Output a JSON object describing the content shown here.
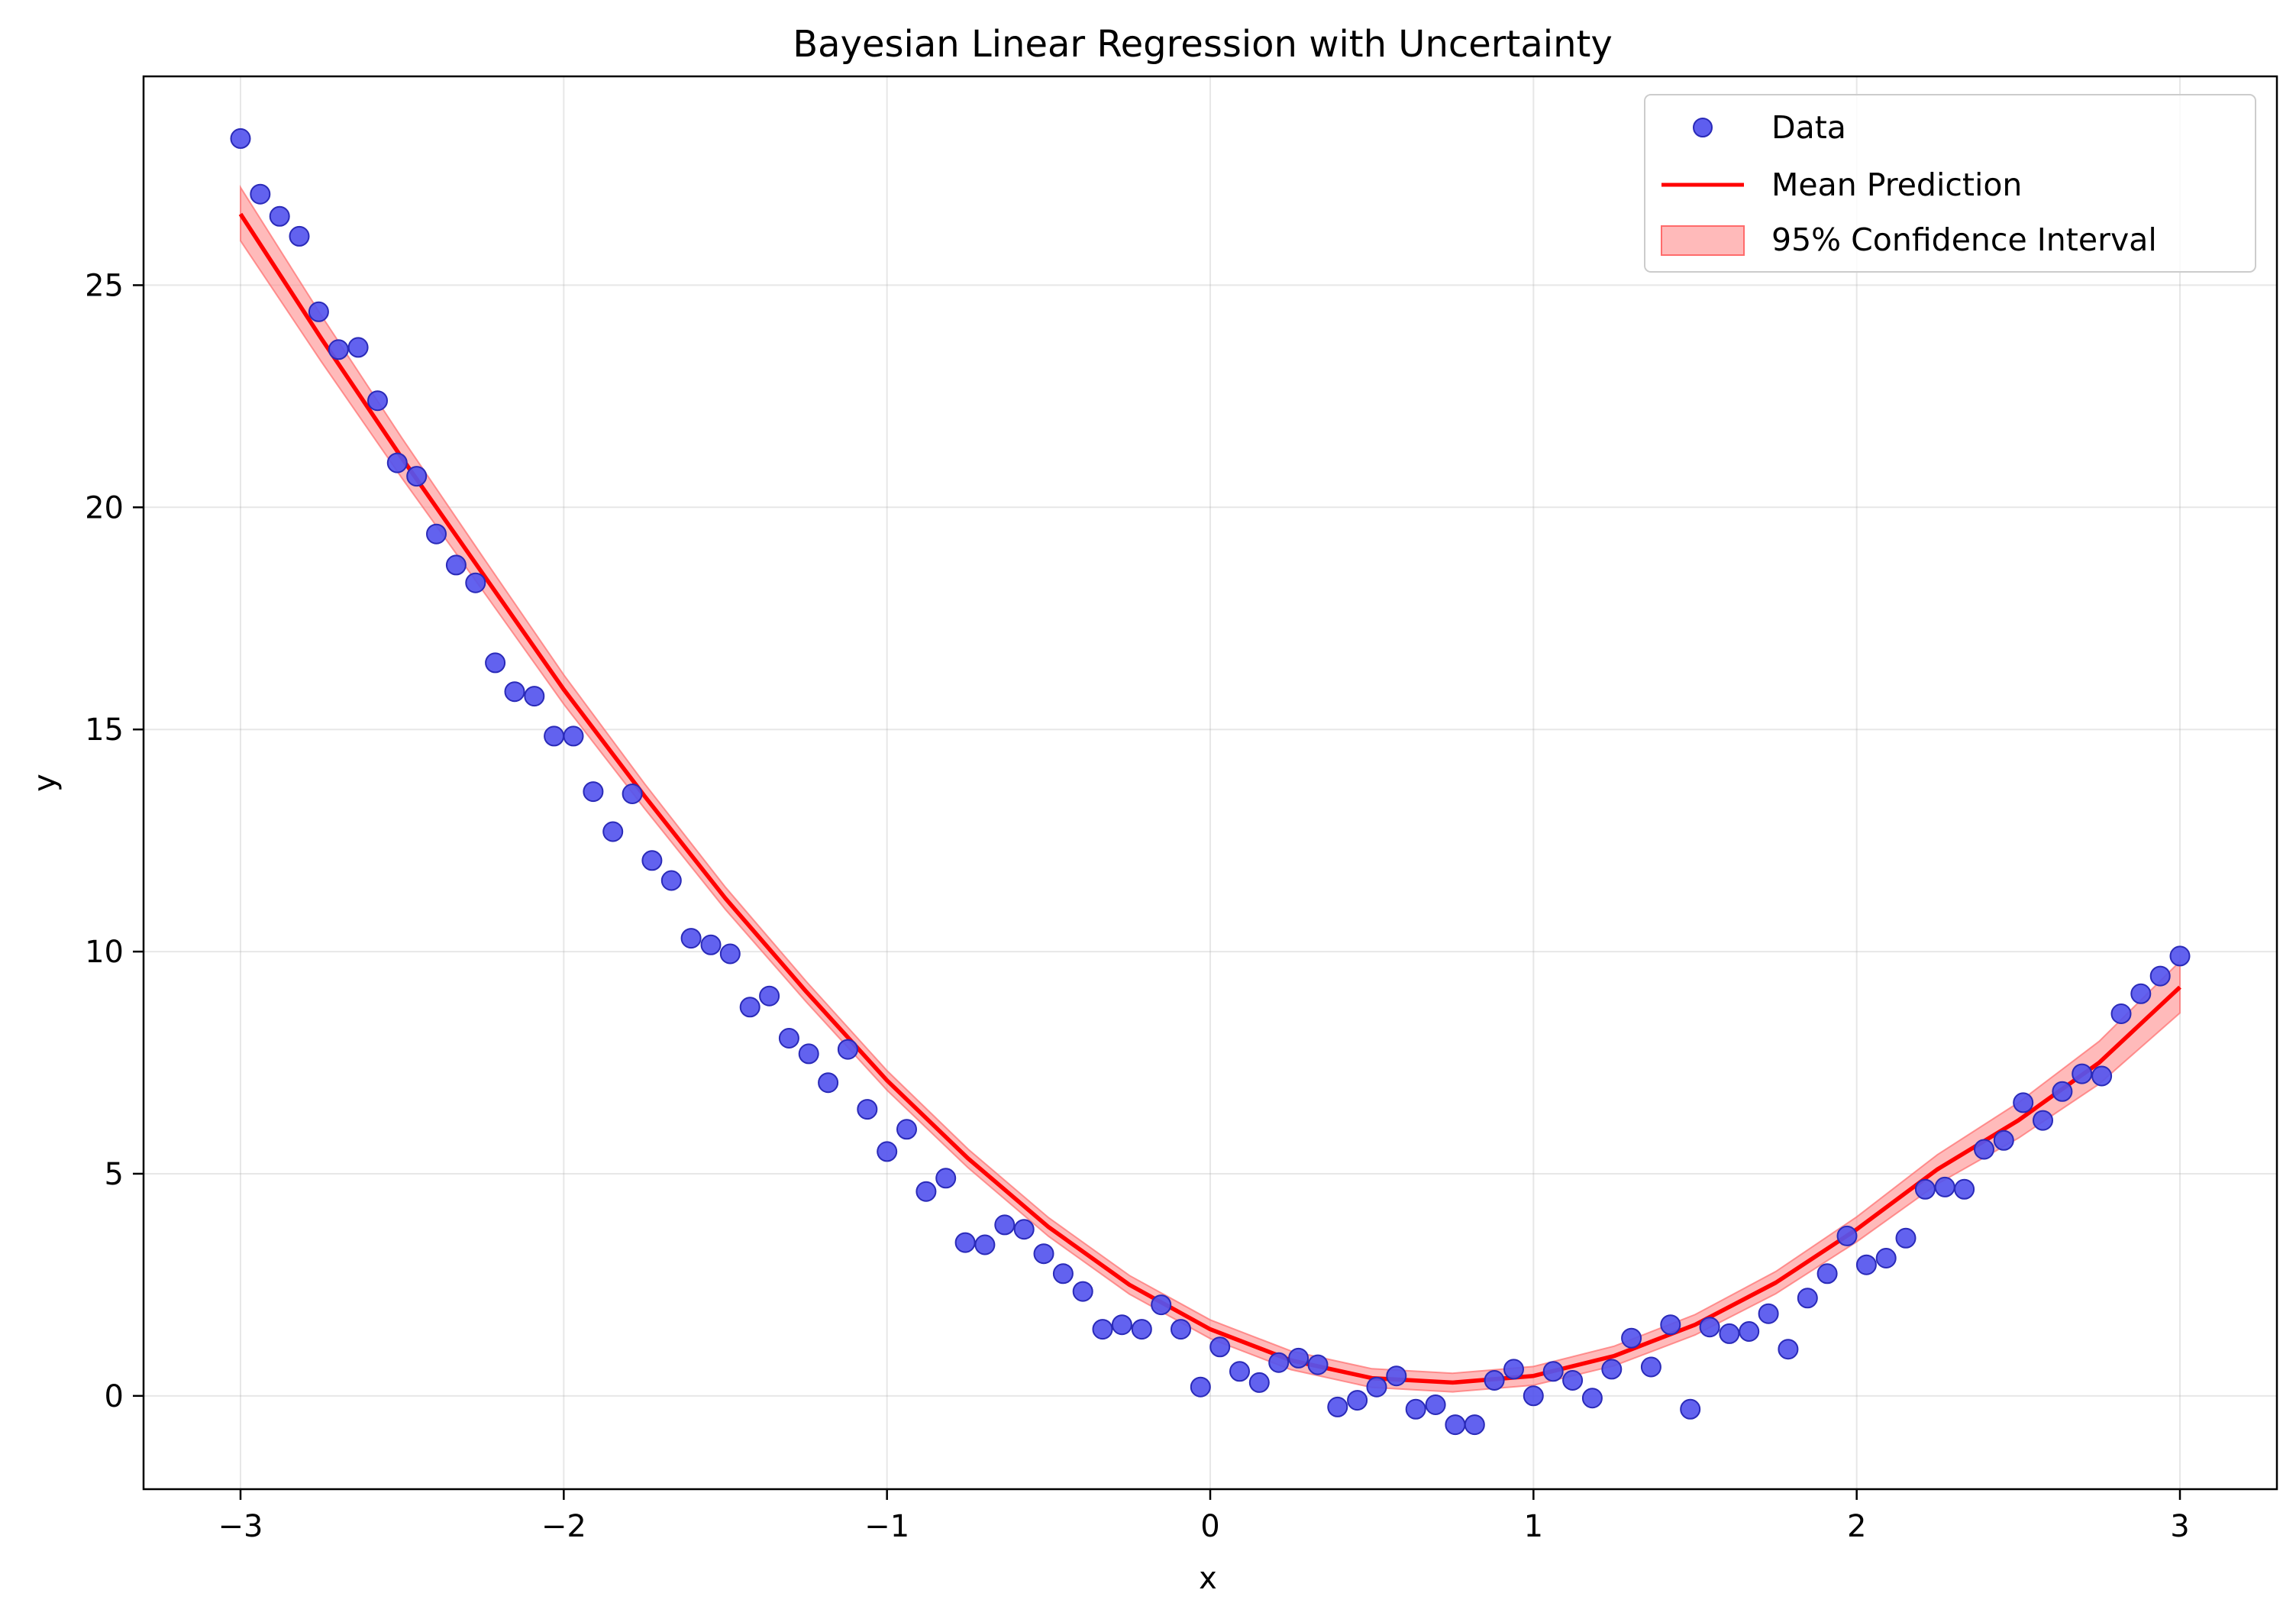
{
  "chart_data": {
    "type": "scatter",
    "title": "Bayesian Linear Regression with Uncertainty",
    "xlabel": "x",
    "ylabel": "y",
    "xlim": [
      -3.3,
      3.3
    ],
    "ylim": [
      -2.1,
      29.7
    ],
    "xticks": [
      -3,
      -2,
      -1,
      0,
      1,
      2,
      3
    ],
    "xtick_labels": [
      "−3",
      "−2",
      "−1",
      "0",
      "1",
      "2",
      "3"
    ],
    "yticks": [
      0,
      5,
      10,
      15,
      20,
      25
    ],
    "ytick_labels": [
      "0",
      "5",
      "10",
      "15",
      "20",
      "25"
    ],
    "grid": true,
    "legend_position": "top-right",
    "legend": {
      "data": "Data",
      "mean": "Mean Prediction",
      "ci": "95% Confidence Interval"
    },
    "colors": {
      "points": "#5555ee",
      "points_edge": "#2a2ab8",
      "mean_line": "#ff0000",
      "band": "#ff8c8c"
    },
    "scatter": {
      "x": [
        -3.0,
        -2.939,
        -2.879,
        -2.818,
        -2.758,
        -2.697,
        -2.636,
        -2.576,
        -2.515,
        -2.455,
        -2.394,
        -2.333,
        -2.273,
        -2.212,
        -2.152,
        -2.091,
        -2.03,
        -1.97,
        -1.909,
        -1.848,
        -1.788,
        -1.727,
        -1.667,
        -1.606,
        -1.545,
        -1.485,
        -1.424,
        -1.364,
        -1.303,
        -1.242,
        -1.182,
        -1.121,
        -1.061,
        -1.0,
        -0.939,
        -0.879,
        -0.818,
        -0.758,
        -0.697,
        -0.636,
        -0.576,
        -0.515,
        -0.455,
        -0.394,
        -0.333,
        -0.273,
        -0.212,
        -0.152,
        -0.091,
        -0.03,
        0.03,
        0.091,
        0.152,
        0.212,
        0.273,
        0.333,
        0.394,
        0.455,
        0.515,
        0.576,
        0.636,
        0.697,
        0.758,
        0.818,
        0.879,
        0.939,
        1.0,
        1.061,
        1.121,
        1.182,
        1.242,
        1.303,
        1.364,
        1.424,
        1.485,
        1.545,
        1.606,
        1.667,
        1.727,
        1.788,
        1.848,
        1.909,
        1.97,
        2.03,
        2.091,
        2.152,
        2.212,
        2.273,
        2.333,
        2.394,
        2.455,
        2.515,
        2.576,
        2.636,
        2.697,
        2.758,
        2.818,
        2.879,
        2.939,
        3.0
      ],
      "y": [
        28.3,
        27.05,
        26.55,
        26.1,
        24.4,
        23.55,
        23.6,
        22.4,
        21.0,
        20.7,
        19.4,
        18.7,
        18.3,
        16.5,
        15.85,
        15.75,
        14.85,
        14.85,
        13.6,
        12.7,
        13.55,
        12.05,
        11.6,
        10.3,
        10.15,
        9.95,
        8.75,
        9.0,
        8.05,
        7.7,
        7.05,
        7.8,
        6.45,
        5.5,
        6.0,
        4.6,
        4.9,
        3.45,
        3.4,
        3.85,
        3.75,
        3.2,
        2.75,
        2.35,
        1.5,
        1.6,
        1.5,
        2.05,
        1.5,
        0.2,
        1.1,
        0.55,
        0.3,
        0.75,
        0.85,
        0.7,
        -0.25,
        -0.1,
        0.2,
        0.45,
        -0.3,
        -0.2,
        -0.65,
        -0.65,
        0.35,
        0.6,
        0.0,
        0.55,
        0.35,
        -0.05,
        0.6,
        1.3,
        0.65,
        1.6,
        -0.3,
        1.55,
        1.4,
        1.45,
        1.85,
        1.05,
        2.2,
        2.75,
        3.6,
        2.95,
        3.1,
        3.55,
        4.65,
        4.7,
        4.65,
        5.55,
        5.75,
        6.6,
        6.2,
        6.85,
        7.25,
        7.2,
        8.6,
        9.05,
        9.45,
        9.9
      ]
    },
    "mean_prediction": {
      "x": [
        -3.0,
        -2.75,
        -2.5,
        -2.25,
        -2.0,
        -1.75,
        -1.5,
        -1.25,
        -1.0,
        -0.75,
        -0.5,
        -0.25,
        0.0,
        0.25,
        0.5,
        0.75,
        1.0,
        1.25,
        1.5,
        1.75,
        2.0,
        2.25,
        2.5,
        2.75,
        3.0
      ],
      "y": [
        26.6,
        23.8,
        21.1,
        18.5,
        15.9,
        13.5,
        11.2,
        9.1,
        7.1,
        5.35,
        3.8,
        2.5,
        1.5,
        0.8,
        0.4,
        0.3,
        0.45,
        0.9,
        1.6,
        2.55,
        3.75,
        5.1,
        6.2,
        7.5,
        9.2
      ],
      "ci_halfwidth": [
        0.6,
        0.52,
        0.45,
        0.38,
        0.33,
        0.28,
        0.25,
        0.23,
        0.22,
        0.21,
        0.21,
        0.21,
        0.21,
        0.21,
        0.21,
        0.21,
        0.21,
        0.22,
        0.23,
        0.25,
        0.28,
        0.33,
        0.4,
        0.48,
        0.58
      ]
    }
  }
}
